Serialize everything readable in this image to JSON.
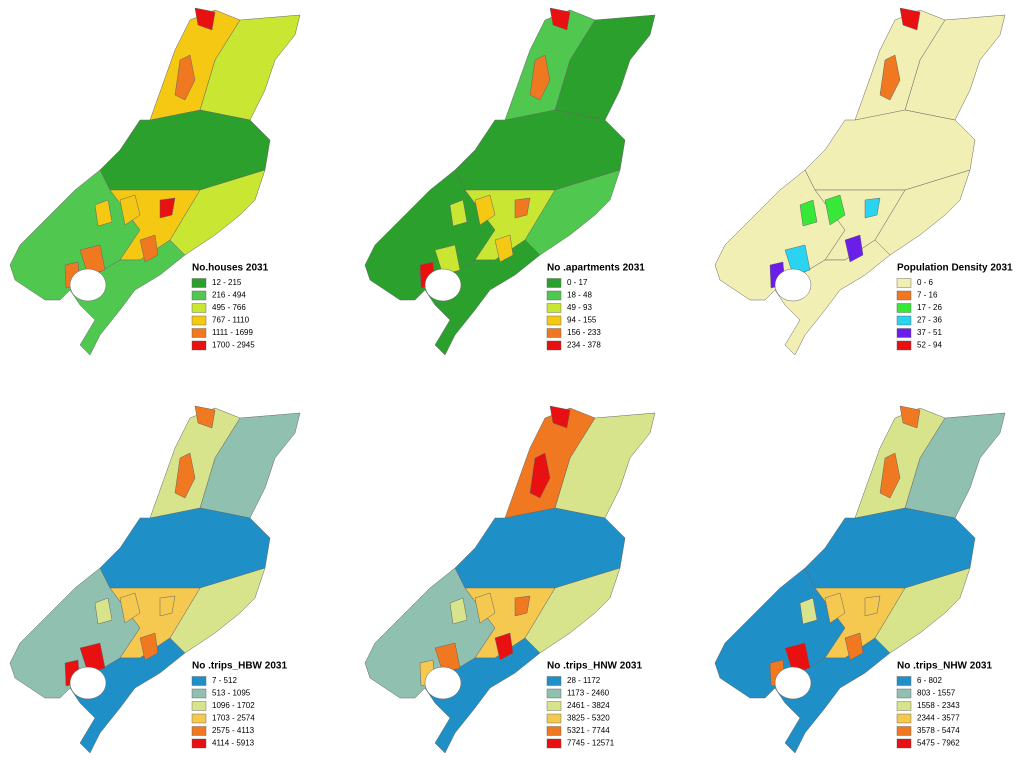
{
  "maps": [
    {
      "title": "No.houses 2031",
      "classes": [
        {
          "label": "12 - 215",
          "color": "#2ca02c"
        },
        {
          "label": "216 - 494",
          "color": "#50c850"
        },
        {
          "label": "495 - 766",
          "color": "#c8e632"
        },
        {
          "label": "767 - 1110",
          "color": "#f5c814"
        },
        {
          "label": "1111 - 1699",
          "color": "#f07820"
        },
        {
          "label": "1700 - 2945",
          "color": "#e81010"
        }
      ]
    },
    {
      "title": "No .apartments 2031",
      "classes": [
        {
          "label": "0 - 17",
          "color": "#2ca02c"
        },
        {
          "label": "18 - 48",
          "color": "#50c850"
        },
        {
          "label": "49 - 93",
          "color": "#c8e632"
        },
        {
          "label": "94 - 155",
          "color": "#f5c814"
        },
        {
          "label": "156 - 233",
          "color": "#f07820"
        },
        {
          "label": "234 - 378",
          "color": "#e81010"
        }
      ]
    },
    {
      "title": "Population Density 2031",
      "classes": [
        {
          "label": "0 - 6",
          "color": "#f2efb4"
        },
        {
          "label": "7 - 16",
          "color": "#f07820"
        },
        {
          "label": "17 - 26",
          "color": "#38e838"
        },
        {
          "label": "27 - 36",
          "color": "#2ad4f0"
        },
        {
          "label": "37 - 51",
          "color": "#6a1ee8"
        },
        {
          "label": "52 - 94",
          "color": "#e81010"
        }
      ]
    },
    {
      "title": "No .trips_HBW 2031",
      "classes": [
        {
          "label": "7 - 512",
          "color": "#1f8fc8"
        },
        {
          "label": "513 - 1095",
          "color": "#8fc0b0"
        },
        {
          "label": "1096 - 1702",
          "color": "#d8e48c"
        },
        {
          "label": "1703 - 2574",
          "color": "#f5c850"
        },
        {
          "label": "2575 - 4113",
          "color": "#f07820"
        },
        {
          "label": "4114 - 5913",
          "color": "#e81010"
        }
      ]
    },
    {
      "title": "No .trips_HNW 2031",
      "classes": [
        {
          "label": "28 - 1172",
          "color": "#1f8fc8"
        },
        {
          "label": "1173 - 2460",
          "color": "#8fc0b0"
        },
        {
          "label": "2461 - 3824",
          "color": "#d8e48c"
        },
        {
          "label": "3825 - 5320",
          "color": "#f5c850"
        },
        {
          "label": "5321 - 7744",
          "color": "#f07820"
        },
        {
          "label": "7745 - 12571",
          "color": "#e81010"
        }
      ]
    },
    {
      "title": "No .trips_NHW 2031",
      "classes": [
        {
          "label": "6 - 802",
          "color": "#1f8fc8"
        },
        {
          "label": "803 - 1557",
          "color": "#8fc0b0"
        },
        {
          "label": "1558 - 2343",
          "color": "#d8e48c"
        },
        {
          "label": "2344 - 3577",
          "color": "#f5c850"
        },
        {
          "label": "3578 - 5474",
          "color": "#f07820"
        },
        {
          "label": "5475 - 7962",
          "color": "#e81010"
        }
      ]
    }
  ]
}
